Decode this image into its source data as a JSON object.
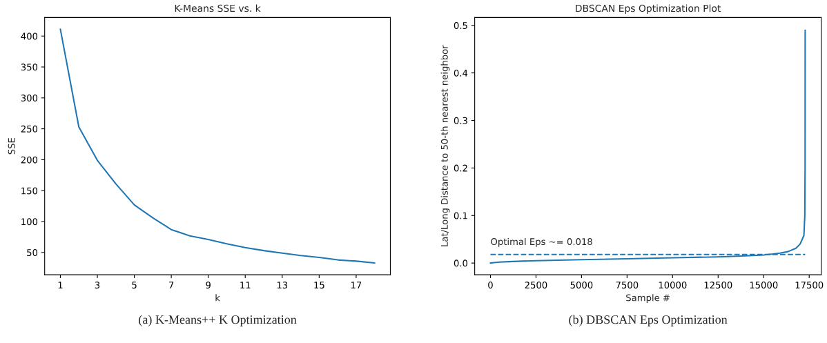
{
  "chart_data": [
    {
      "type": "line",
      "title": "K-Means SSE vs. k",
      "xlabel": "k",
      "ylabel": "SSE",
      "x": [
        1,
        2,
        3,
        4,
        5,
        6,
        7,
        8,
        9,
        10,
        11,
        12,
        13,
        14,
        15,
        16,
        17,
        18
      ],
      "series": [
        {
          "color": "#1f77b4",
          "values": [
            411,
            253,
            199,
            161,
            127,
            106,
            87,
            77,
            71,
            64,
            58,
            53,
            49,
            45,
            42,
            38,
            36,
            33
          ]
        }
      ],
      "xlim": [
        0.15,
        18.85
      ],
      "xticks": [
        1,
        3,
        5,
        7,
        9,
        11,
        13,
        15,
        17
      ],
      "ylim": [
        14,
        430
      ],
      "yticks": [
        50,
        100,
        150,
        200,
        250,
        300,
        350,
        400
      ],
      "grid": false,
      "line_style": "solid",
      "marker": "none",
      "annotations": [
        "(a) K-Means++ K Optimization"
      ]
    },
    {
      "type": "line",
      "title": "DBSCAN Eps Optimization Plot",
      "xlabel": "Sample #",
      "ylabel": "Lat/Long Distance to 50-th nearest neighbor",
      "series": [
        {
          "color": "#1f77b4",
          "x": [
            0,
            200,
            500,
            1000,
            2500,
            5000,
            7500,
            10000,
            12500,
            14000,
            15000,
            15500,
            15900,
            16330,
            16770,
            17000,
            17210,
            17260,
            17275,
            17280
          ],
          "values": [
            0.0,
            0.001,
            0.002,
            0.003,
            0.005,
            0.007,
            0.009,
            0.011,
            0.013,
            0.015,
            0.017,
            0.019,
            0.021,
            0.024,
            0.031,
            0.04,
            0.058,
            0.1,
            0.2,
            0.49
          ]
        },
        {
          "color": "#1f77b4",
          "type": "line",
          "line_style": "dashed",
          "x": [
            0,
            17280
          ],
          "values": [
            0.018,
            0.018
          ]
        }
      ],
      "xlim": [
        -865,
        18160
      ],
      "xticks": [
        0,
        2500,
        5000,
        7500,
        10000,
        12500,
        15000,
        17500
      ],
      "ylim": [
        -0.0246,
        0.5166
      ],
      "yticks": [
        {
          "value": 0,
          "label": "0.0"
        },
        0.1,
        0.2,
        0.3,
        0.4,
        0.5
      ],
      "grid": false,
      "line_style": "solid",
      "marker": "none",
      "annotations": [
        {
          "text": "Optimal Eps ~= 0.018",
          "x": 0,
          "y": 0.018
        },
        "(b) DBSCAN Eps Optimization"
      ]
    }
  ]
}
